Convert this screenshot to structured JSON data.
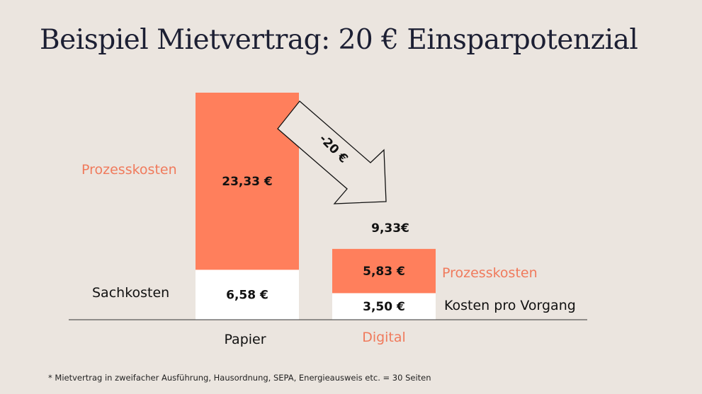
{
  "title": "Beispiel Mietvertrag: 20 € Einsparpotenzial",
  "footnote": "* Mietvertrag in zweifacher Ausführung, Hausordnung, SEPA, Energieausweis etc. = 30 Seiten",
  "colors": {
    "prozesskosten": "#ff7f5c",
    "sachkosten": "#ffffff",
    "background": "#ebe5df",
    "title": "#1c1f33"
  },
  "chart_data": {
    "type": "bar",
    "stacked": true,
    "categories": [
      "Papier",
      "Digital"
    ],
    "series": [
      {
        "name": "Sachkosten",
        "values": [
          6.58,
          3.5
        ],
        "labels": [
          "6,58 €",
          "3,50 €"
        ],
        "color": "#ffffff"
      },
      {
        "name": "Prozesskosten",
        "values": [
          23.33,
          5.83
        ],
        "labels": [
          "23,33 €",
          "5,83 €"
        ],
        "color": "#ff7f5c"
      }
    ],
    "series_labels": {
      "papier_sach": "Sachkosten",
      "papier_prozess": "Prozesskosten",
      "digital_prozess": "Prozesskosten",
      "digital_sach": "Kosten pro Vorgang"
    },
    "digital_total_label": "9,33€",
    "arrow_label": "-20 €",
    "ylim": [
      0,
      29.91
    ]
  }
}
